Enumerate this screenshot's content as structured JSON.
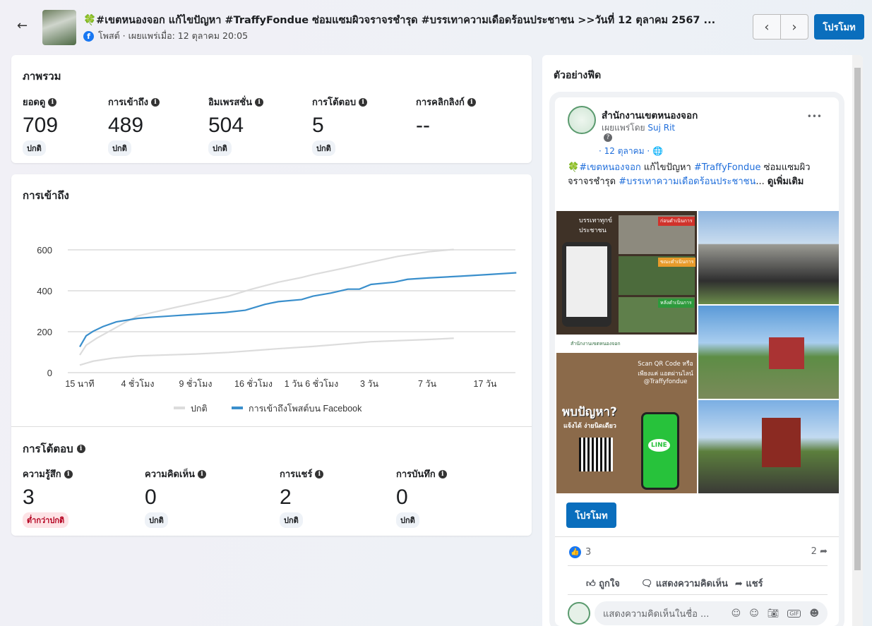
{
  "header": {
    "title": "🍀#เขตหนองจอก แก้ไขปัญหา #TraffyFondue ซ่อมแซมผิวจราจรชำรุด #บรรเทาความเดือดร้อนประชาชน >>วันที่ 12 ตุลาคม 2567 ...",
    "subtitle": "โพสต์ · เผยแพร่เมื่อ: 12 ตุลาคม 20:05",
    "promote": "โปรโมท",
    "prev": "‹",
    "next": "›",
    "back": "←"
  },
  "overview": {
    "title": "ภาพรวม",
    "metrics": [
      {
        "label": "ยอดดู",
        "value": "709",
        "badge": "ปกติ"
      },
      {
        "label": "การเข้าถึง",
        "value": "489",
        "badge": "ปกติ"
      },
      {
        "label": "อิมเพรสชั่น",
        "value": "504",
        "badge": "ปกติ"
      },
      {
        "label": "การโต้ตอบ",
        "value": "5",
        "badge": "ปกติ"
      },
      {
        "label": "การคลิกลิงก์",
        "value": "--"
      }
    ]
  },
  "reach": {
    "title": "การเข้าถึง"
  },
  "chart_data": {
    "type": "line",
    "title": "การเข้าถึง",
    "xlabel": "",
    "ylabel": "",
    "ylim": [
      0,
      600
    ],
    "yticks": [
      0,
      200,
      400,
      600
    ],
    "xticks": [
      "15 นาที",
      "4 ชั่วโมง",
      "9 ชั่วโมง",
      "16 ชั่วโมง",
      "1 วัน 6 ชั่วโมง",
      "3 วัน",
      "7 วัน",
      "17 วัน"
    ],
    "legend": [
      "ปกติ",
      "การเข้าถึงโพสต์บน Facebook"
    ],
    "legend_position": "bottom",
    "grid": true,
    "series": [
      {
        "name": "การเข้าถึงโพสต์บน Facebook",
        "color": "#3a8fcc",
        "x": [
          0,
          0.11,
          0.23,
          0.4,
          0.63,
          1,
          1.26,
          2,
          2.51,
          2.86,
          3.2,
          3.43,
          3.83,
          4.03,
          4.34,
          4.63,
          4.83,
          5.03,
          5.43,
          5.66,
          6.03,
          6.57,
          7.03,
          7.54
        ],
        "y": [
          126,
          180,
          202,
          225,
          248,
          265,
          271,
          285,
          294,
          305,
          334,
          347,
          357,
          374,
          389,
          408,
          408,
          431,
          442,
          456,
          463,
          471,
          479,
          488
        ]
      },
      {
        "name": "ปกติ (บน)",
        "color": "#dcdcdc",
        "x": [
          0,
          0.11,
          0.29,
          0.51,
          0.8,
          1,
          1.43,
          2,
          2.57,
          2.97,
          3.43,
          3.83,
          4.03,
          4.57,
          5.03,
          5.49,
          6.03,
          6.46
        ],
        "y": [
          86,
          134,
          168,
          202,
          248,
          277,
          305,
          340,
          374,
          408,
          442,
          465,
          479,
          511,
          540,
          568,
          591,
          602
        ]
      },
      {
        "name": "ปกติ (ล่าง)",
        "color": "#dcdcdc",
        "x": [
          0,
          0.23,
          0.57,
          1,
          2,
          2.57,
          3.43,
          4.03,
          5.03,
          6.03,
          6.46
        ],
        "y": [
          37,
          56,
          71,
          82,
          91,
          99,
          117,
          128,
          151,
          162,
          168
        ]
      }
    ]
  },
  "engagement": {
    "title": "การโต้ตอบ",
    "metrics": [
      {
        "label": "ความรู้สึก",
        "value": "3",
        "badge": "ต่ำกว่าปกติ"
      },
      {
        "label": "ความคิดเห็น",
        "value": "0",
        "badge": "ปกติ"
      },
      {
        "label": "การแชร์",
        "value": "2",
        "badge": "ปกติ"
      },
      {
        "label": "การบันทึก",
        "value": "0",
        "badge": "ปกติ"
      }
    ]
  },
  "feed": {
    "title": "ตัวอย่างฟีด",
    "page_name": "สำนักงานเขตหนองจอก",
    "published_by": "เผยแพร่โดย",
    "author": "Suj Rit",
    "date": "· 12 ตุลาคม ·",
    "text_parts": [
      "🍀",
      "#เขตหนองจอก",
      " แก้ไขปัญหา ",
      "#TraffyFondue",
      "  ซ่อมแซมผิวจราจรชำรุด ",
      "#บรรเทาความเดือดร้อนประชาชน",
      "... ",
      "ดูเพิ่มเติม"
    ],
    "img_texts": [
      "บรรเทาทุกข์ ประชาชน",
      "ก่อนดำเนินการ",
      "ขณะดำเนินการ",
      "หลังดำเนินการ",
      "สำนักงานเขตหนองจอก",
      "Scan QR Code หรือเพียงแค่ แอดผ่านไลน์ @Traffyfondue",
      "พบปัญหา?",
      "แจ้งได้ ง่ายนิดเดียว",
      "LINE"
    ],
    "promote": "โปรโมท",
    "likes": "3",
    "shares": "2",
    "like": "ถูกใจ",
    "comment": "แสดงความคิดเห็น",
    "share": "แชร์",
    "comment_placeholder": "แสดงความคิดเห็นในชื่อ ...",
    "more": "•••"
  }
}
